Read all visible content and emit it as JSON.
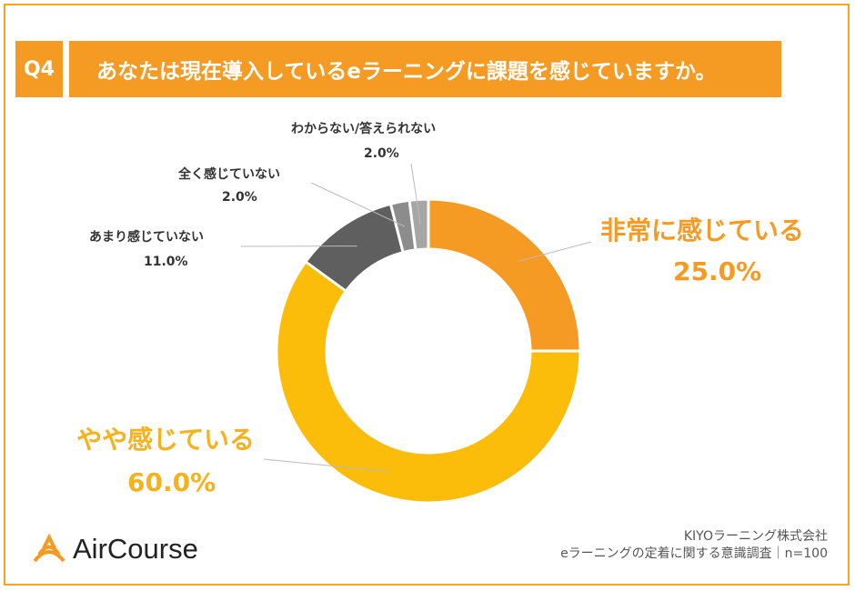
{
  "header": {
    "q_label": "Q4",
    "question": "あなたは現在導入しているeラーニングに課題を感じていますか。"
  },
  "chart_data": {
    "type": "pie",
    "categories": [
      "非常に感じている",
      "やや感じている",
      "あまり感じていない",
      "全く感じていない",
      "わからない/答えられない"
    ],
    "values": [
      25.0,
      60.0,
      11.0,
      2.0,
      2.0
    ],
    "value_labels": [
      "25.0%",
      "60.0%",
      "11.0%",
      "2.0%",
      "2.0%"
    ],
    "colors": [
      "#f59a23",
      "#fbbd09",
      "#5f5f5f",
      "#8c8c8c",
      "#a6a6a6"
    ],
    "donut": true
  },
  "footer": {
    "logo_text": "AirCourse",
    "company": "KIYOラーニング株式会社",
    "survey": "eラーニングの定着に関する意識調査｜n=100"
  }
}
